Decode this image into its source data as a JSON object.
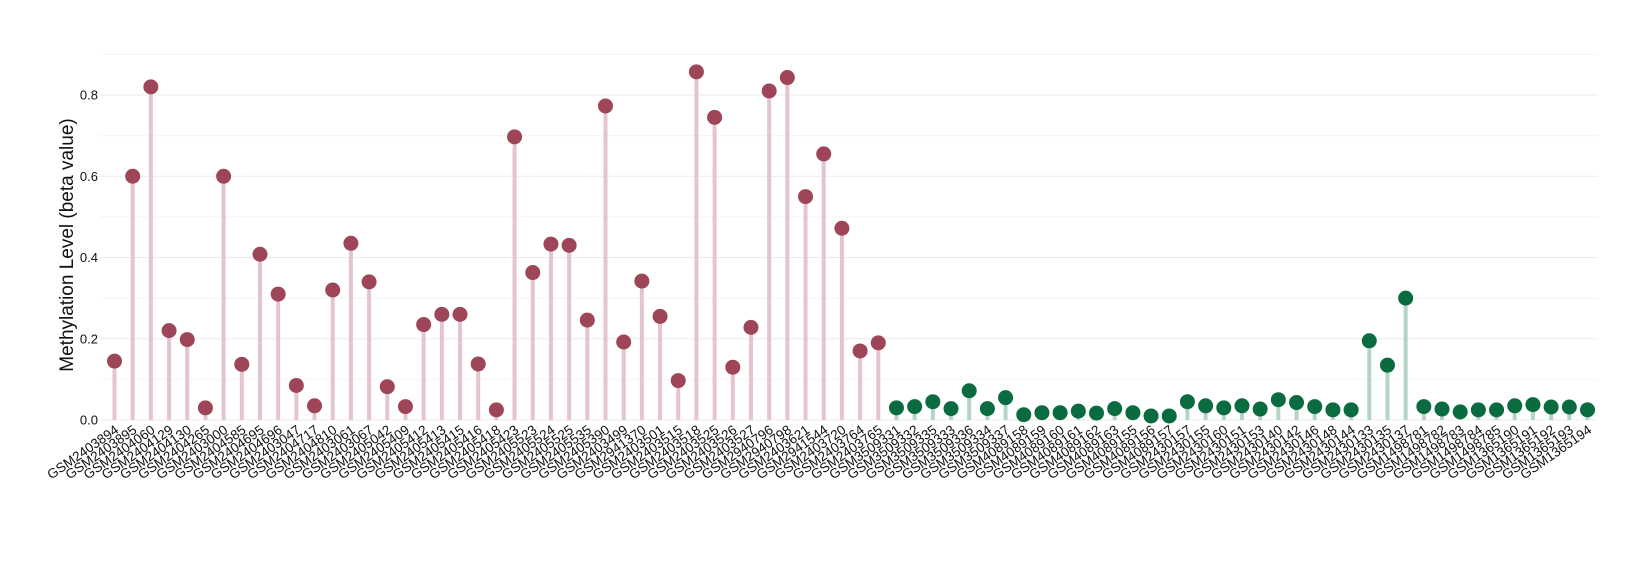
{
  "chart_data": {
    "type": "lollipop",
    "title": "",
    "xlabel": "",
    "ylabel": "Methylation Level (beta value)",
    "ylim": [
      0,
      0.9
    ],
    "yticks": [
      0.0,
      0.2,
      0.4,
      0.6,
      0.8
    ],
    "ytick_labels": [
      "0.0",
      "0.2",
      "0.4",
      "0.6",
      "0.8"
    ],
    "grid": "horizontal",
    "legend": "none",
    "colors": {
      "group1_point": "#9e4557",
      "group1_stem": "#e2c5cd",
      "group2_point": "#0a6b40",
      "group2_stem": "#b5d4c5"
    },
    "points": [
      {
        "label": "GSM2403894",
        "value": 0.145,
        "group": 1
      },
      {
        "label": "GSM2403895",
        "value": 0.6,
        "group": 1
      },
      {
        "label": "GSM2404060",
        "value": 0.82,
        "group": 1
      },
      {
        "label": "GSM2404129",
        "value": 0.22,
        "group": 1
      },
      {
        "label": "GSM2404130",
        "value": 0.198,
        "group": 1
      },
      {
        "label": "GSM2404265",
        "value": 0.03,
        "group": 1
      },
      {
        "label": "GSM2403000",
        "value": 0.6,
        "group": 1
      },
      {
        "label": "GSM2404585",
        "value": 0.137,
        "group": 1
      },
      {
        "label": "GSM2404695",
        "value": 0.408,
        "group": 1
      },
      {
        "label": "GSM2404696",
        "value": 0.31,
        "group": 1
      },
      {
        "label": "GSM2403047",
        "value": 0.085,
        "group": 1
      },
      {
        "label": "GSM2404717",
        "value": 0.035,
        "group": 1
      },
      {
        "label": "GSM2404810",
        "value": 0.32,
        "group": 1
      },
      {
        "label": "GSM2403061",
        "value": 0.435,
        "group": 1
      },
      {
        "label": "GSM2403067",
        "value": 0.34,
        "group": 1
      },
      {
        "label": "GSM2405042",
        "value": 0.082,
        "group": 1
      },
      {
        "label": "GSM2405409",
        "value": 0.033,
        "group": 1
      },
      {
        "label": "GSM2405412",
        "value": 0.235,
        "group": 1
      },
      {
        "label": "GSM2405413",
        "value": 0.26,
        "group": 1
      },
      {
        "label": "GSM2405415",
        "value": 0.26,
        "group": 1
      },
      {
        "label": "GSM2405416",
        "value": 0.138,
        "group": 1
      },
      {
        "label": "GSM2405418",
        "value": 0.025,
        "group": 1
      },
      {
        "label": "GSM2405423",
        "value": 0.697,
        "group": 1
      },
      {
        "label": "GSM2405523",
        "value": 0.363,
        "group": 1
      },
      {
        "label": "GSM2405524",
        "value": 0.433,
        "group": 1
      },
      {
        "label": "GSM2405525",
        "value": 0.43,
        "group": 1
      },
      {
        "label": "GSM2405535",
        "value": 0.246,
        "group": 1
      },
      {
        "label": "GSM2405390",
        "value": 0.773,
        "group": 1
      },
      {
        "label": "GSM2403499",
        "value": 0.192,
        "group": 1
      },
      {
        "label": "GSM2941370",
        "value": 0.342,
        "group": 1
      },
      {
        "label": "GSM2403501",
        "value": 0.255,
        "group": 1
      },
      {
        "label": "GSM2403515",
        "value": 0.097,
        "group": 1
      },
      {
        "label": "GSM2403518",
        "value": 0.857,
        "group": 1
      },
      {
        "label": "GSM2403525",
        "value": 0.745,
        "group": 1
      },
      {
        "label": "GSM2403526",
        "value": 0.13,
        "group": 1
      },
      {
        "label": "GSM2403527",
        "value": 0.228,
        "group": 1
      },
      {
        "label": "GSM2940796",
        "value": 0.81,
        "group": 1
      },
      {
        "label": "GSM2940798",
        "value": 0.843,
        "group": 1
      },
      {
        "label": "GSM2403621",
        "value": 0.55,
        "group": 1
      },
      {
        "label": "GSM2941544",
        "value": 0.655,
        "group": 1
      },
      {
        "label": "GSM2403720",
        "value": 0.472,
        "group": 1
      },
      {
        "label": "GSM2403764",
        "value": 0.17,
        "group": 1
      },
      {
        "label": "GSM2403765",
        "value": 0.19,
        "group": 1
      },
      {
        "label": "GSM3509331",
        "value": 0.03,
        "group": 2
      },
      {
        "label": "GSM3509332",
        "value": 0.033,
        "group": 2
      },
      {
        "label": "GSM3509335",
        "value": 0.045,
        "group": 2
      },
      {
        "label": "GSM3509333",
        "value": 0.028,
        "group": 2
      },
      {
        "label": "GSM3509336",
        "value": 0.072,
        "group": 2
      },
      {
        "label": "GSM3509334",
        "value": 0.028,
        "group": 2
      },
      {
        "label": "GSM3509337",
        "value": 0.055,
        "group": 2
      },
      {
        "label": "GSM4089158",
        "value": 0.013,
        "group": 2
      },
      {
        "label": "GSM4089159",
        "value": 0.018,
        "group": 2
      },
      {
        "label": "GSM4089160",
        "value": 0.018,
        "group": 2
      },
      {
        "label": "GSM4089161",
        "value": 0.022,
        "group": 2
      },
      {
        "label": "GSM4089162",
        "value": 0.017,
        "group": 2
      },
      {
        "label": "GSM4089163",
        "value": 0.028,
        "group": 2
      },
      {
        "label": "GSM4089155",
        "value": 0.018,
        "group": 2
      },
      {
        "label": "GSM4089156",
        "value": 0.01,
        "group": 2
      },
      {
        "label": "GSM4089157",
        "value": 0.01,
        "group": 2
      },
      {
        "label": "GSM2430157",
        "value": 0.045,
        "group": 2
      },
      {
        "label": "GSM2430155",
        "value": 0.035,
        "group": 2
      },
      {
        "label": "GSM2430160",
        "value": 0.03,
        "group": 2
      },
      {
        "label": "GSM2430151",
        "value": 0.035,
        "group": 2
      },
      {
        "label": "GSM2430153",
        "value": 0.027,
        "group": 2
      },
      {
        "label": "GSM2430140",
        "value": 0.05,
        "group": 2
      },
      {
        "label": "GSM2430142",
        "value": 0.043,
        "group": 2
      },
      {
        "label": "GSM2430146",
        "value": 0.033,
        "group": 2
      },
      {
        "label": "GSM2430148",
        "value": 0.025,
        "group": 2
      },
      {
        "label": "GSM2430144",
        "value": 0.025,
        "group": 2
      },
      {
        "label": "GSM2430133",
        "value": 0.195,
        "group": 2
      },
      {
        "label": "GSM2430135",
        "value": 0.135,
        "group": 2
      },
      {
        "label": "GSM2430137",
        "value": 0.3,
        "group": 2
      },
      {
        "label": "GSM1498781",
        "value": 0.033,
        "group": 2
      },
      {
        "label": "GSM1498782",
        "value": 0.027,
        "group": 2
      },
      {
        "label": "GSM1498783",
        "value": 0.02,
        "group": 2
      },
      {
        "label": "GSM1498784",
        "value": 0.025,
        "group": 2
      },
      {
        "label": "GSM1498785",
        "value": 0.025,
        "group": 2
      },
      {
        "label": "GSM1365190",
        "value": 0.035,
        "group": 2
      },
      {
        "label": "GSM1365191",
        "value": 0.038,
        "group": 2
      },
      {
        "label": "GSM1365192",
        "value": 0.032,
        "group": 2
      },
      {
        "label": "GSM1365193",
        "value": 0.032,
        "group": 2
      },
      {
        "label": "GSM1365194",
        "value": 0.025,
        "group": 2
      }
    ]
  }
}
